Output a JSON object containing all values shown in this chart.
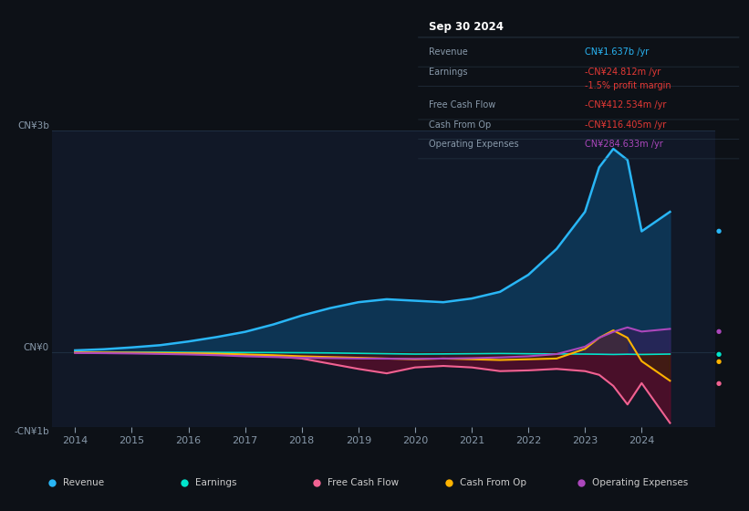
{
  "bg_color": "#0d1117",
  "plot_bg_color": "#111827",
  "years": [
    2014,
    2014.5,
    2015,
    2015.5,
    2016,
    2016.5,
    2017,
    2017.5,
    2018,
    2018.5,
    2019,
    2019.5,
    2020,
    2020.5,
    2021,
    2021.5,
    2022,
    2022.5,
    2023,
    2023.25,
    2023.5,
    2023.75,
    2024,
    2024.5
  ],
  "revenue": [
    30000000.0,
    45000000.0,
    70000000.0,
    100000000.0,
    150000000.0,
    210000000.0,
    280000000.0,
    380000000.0,
    500000000.0,
    600000000.0,
    680000000.0,
    720000000.0,
    700000000.0,
    680000000.0,
    730000000.0,
    820000000.0,
    1050000000.0,
    1400000000.0,
    1900000000.0,
    2500000000.0,
    2750000000.0,
    2600000000.0,
    1637000000.0,
    1900000000.0
  ],
  "earnings": [
    5000000.0,
    4000000.0,
    4000000.0,
    5000000.0,
    3000000.0,
    2000000.0,
    1000000.0,
    0,
    -2000000.0,
    -5000000.0,
    -10000000.0,
    -15000000.0,
    -20000000.0,
    -18000000.0,
    -15000000.0,
    -12000000.0,
    -15000000.0,
    -18000000.0,
    -20000000.0,
    -22000000.0,
    -25000000.0,
    -22000000.0,
    -24812000.0,
    -20000000.0
  ],
  "free_cash_flow": [
    0,
    -2000000.0,
    -5000000.0,
    -8000000.0,
    -12000000.0,
    -20000000.0,
    -30000000.0,
    -50000000.0,
    -80000000.0,
    -150000000.0,
    -220000000.0,
    -280000000.0,
    -200000000.0,
    -180000000.0,
    -200000000.0,
    -250000000.0,
    -240000000.0,
    -220000000.0,
    -250000000.0,
    -300000000.0,
    -450000000.0,
    -700000000.0,
    -412000000.0,
    -950000000.0
  ],
  "cash_from_op": [
    2000000.0,
    0,
    -2000000.0,
    -5000000.0,
    -10000000.0,
    -15000000.0,
    -25000000.0,
    -35000000.0,
    -50000000.0,
    -60000000.0,
    -70000000.0,
    -80000000.0,
    -90000000.0,
    -80000000.0,
    -90000000.0,
    -100000000.0,
    -90000000.0,
    -80000000.0,
    50000000.0,
    200000000.0,
    300000000.0,
    200000000.0,
    -116000000.0,
    -380000000.0
  ],
  "operating_expenses": [
    -5000000.0,
    -8000000.0,
    -12000000.0,
    -18000000.0,
    -25000000.0,
    -35000000.0,
    -50000000.0,
    -60000000.0,
    -70000000.0,
    -75000000.0,
    -80000000.0,
    -82000000.0,
    -85000000.0,
    -80000000.0,
    -75000000.0,
    -65000000.0,
    -50000000.0,
    -20000000.0,
    80000000.0,
    200000000.0,
    280000000.0,
    340000000.0,
    284000000.0,
    320000000.0
  ],
  "revenue_color": "#29b6f6",
  "earnings_color": "#00e5cc",
  "fcf_color": "#f06292",
  "cashop_color": "#ffb300",
  "opex_color": "#ab47bc",
  "revenue_fill": "#0d3a5c",
  "fcf_fill": "#5c0d2a",
  "cashop_fill_pos": "#5c3d00",
  "cashop_fill_neg": "#3a2800",
  "opex_fill_pos": "#3d1a5c",
  "opex_fill_neg": "#2a0d3a",
  "grid_color": "#1e2d40",
  "text_color": "#8899aa",
  "box_bg": "#050a0f",
  "box_border": "#2a3a4a",
  "date_label": "Sep 30 2024",
  "info_rows": [
    {
      "label": "Revenue",
      "value": "CN¥1.637b /yr",
      "vcolor": "#29b6f6"
    },
    {
      "label": "Earnings",
      "value": "-CN¥24.812m /yr",
      "vcolor": "#e53935"
    },
    {
      "label": "",
      "value": "-1.5% profit margin",
      "vcolor": "#e53935"
    },
    {
      "label": "Free Cash Flow",
      "value": "-CN¥412.534m /yr",
      "vcolor": "#e53935"
    },
    {
      "label": "Cash From Op",
      "value": "-CN¥116.405m /yr",
      "vcolor": "#e53935"
    },
    {
      "label": "Operating Expenses",
      "value": "CN¥284.633m /yr",
      "vcolor": "#ab47bc"
    }
  ],
  "legend_items": [
    {
      "label": "Revenue",
      "color": "#29b6f6"
    },
    {
      "label": "Earnings",
      "color": "#00e5cc"
    },
    {
      "label": "Free Cash Flow",
      "color": "#f06292"
    },
    {
      "label": "Cash From Op",
      "color": "#ffb300"
    },
    {
      "label": "Operating Expenses",
      "color": "#ab47bc"
    }
  ],
  "xlim": [
    2013.6,
    2025.3
  ],
  "ylim": [
    -1000000000.0,
    3000000000.0
  ],
  "xticks": [
    2014,
    2015,
    2016,
    2017,
    2018,
    2019,
    2020,
    2021,
    2022,
    2023,
    2024
  ],
  "ytick_vals": [
    -1000000000.0,
    0,
    3000000000.0
  ],
  "ytick_labels": [
    "-CN¥1b",
    "CN¥0",
    "CN¥3b"
  ]
}
